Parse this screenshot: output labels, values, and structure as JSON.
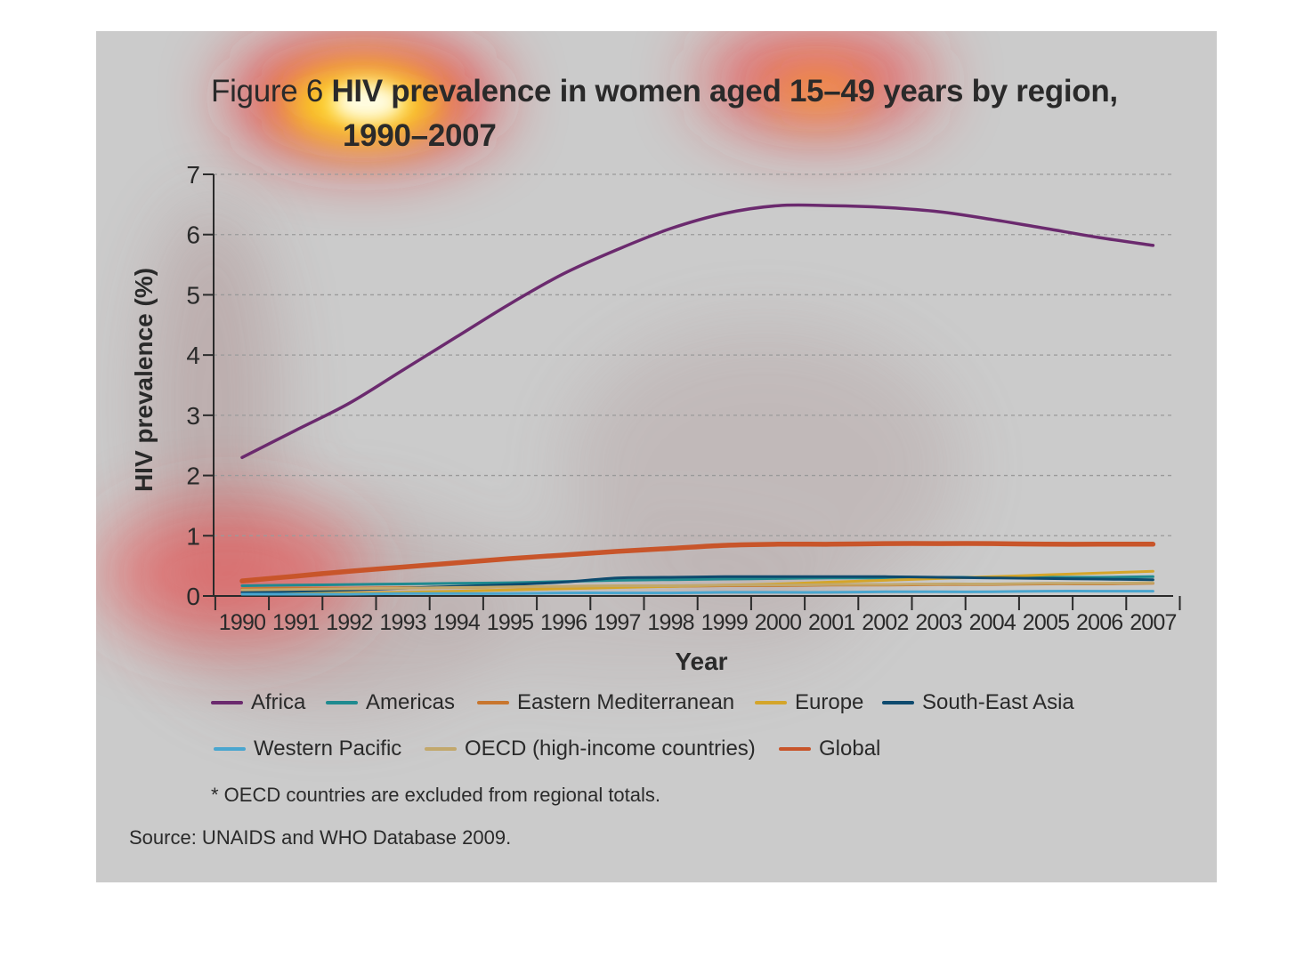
{
  "figure": {
    "title_prefix": "Figure 6",
    "title_bold": "HIV prevalence in women aged 15–49 years by region,",
    "title_line2": "1990–2007",
    "footnote": "* OECD countries are excluded from regional totals.",
    "source": "Source: UNAIDS and WHO Database 2009.",
    "background": "#cbcbcb"
  },
  "chart_data": {
    "type": "line",
    "xlabel": "Year",
    "ylabel": "HIV prevalence (%)",
    "ylim": [
      0,
      7
    ],
    "yticks": [
      "0",
      "1",
      "2",
      "3",
      "4",
      "5",
      "6",
      "7"
    ],
    "grid": "horizontal dashed",
    "legend_position": "bottom",
    "x": [
      "1990",
      "1991",
      "1992",
      "1993",
      "1994",
      "1995",
      "1996",
      "1997",
      "1998",
      "1999",
      "2000",
      "2001",
      "2002",
      "2003",
      "2004",
      "2005",
      "2006",
      "2007"
    ],
    "series": [
      {
        "name": "Africa",
        "color": "#6b2a6e",
        "width": 3.5,
        "values": [
          2.3,
          2.75,
          3.2,
          3.75,
          4.3,
          4.85,
          5.35,
          5.75,
          6.1,
          6.35,
          6.48,
          6.48,
          6.45,
          6.38,
          6.25,
          6.1,
          5.95,
          5.82
        ]
      },
      {
        "name": "Americas",
        "color": "#1f8a8f",
        "width": 3,
        "values": [
          0.17,
          0.18,
          0.19,
          0.2,
          0.21,
          0.22,
          0.24,
          0.26,
          0.27,
          0.28,
          0.29,
          0.3,
          0.3,
          0.31,
          0.31,
          0.31,
          0.31,
          0.32
        ]
      },
      {
        "name": "Eastern Mediterranean",
        "color": "#c8762e",
        "width": 3,
        "values": [
          0.12,
          0.13,
          0.13,
          0.14,
          0.14,
          0.15,
          0.15,
          0.16,
          0.16,
          0.17,
          0.17,
          0.18,
          0.18,
          0.19,
          0.19,
          0.2,
          0.2,
          0.21
        ]
      },
      {
        "name": "Europe",
        "color": "#d4a52a",
        "width": 3,
        "values": [
          0.03,
          0.04,
          0.05,
          0.06,
          0.08,
          0.1,
          0.12,
          0.14,
          0.16,
          0.18,
          0.2,
          0.23,
          0.26,
          0.29,
          0.32,
          0.35,
          0.38,
          0.41
        ]
      },
      {
        "name": "South-East Asia",
        "color": "#0e4a6e",
        "width": 3,
        "values": [
          0.06,
          0.08,
          0.1,
          0.13,
          0.16,
          0.19,
          0.23,
          0.3,
          0.31,
          0.32,
          0.32,
          0.32,
          0.32,
          0.31,
          0.3,
          0.29,
          0.28,
          0.27
        ]
      },
      {
        "name": "Western Pacific",
        "color": "#4aa6cf",
        "width": 3,
        "values": [
          0.03,
          0.03,
          0.03,
          0.04,
          0.04,
          0.04,
          0.05,
          0.05,
          0.05,
          0.06,
          0.06,
          0.06,
          0.07,
          0.07,
          0.07,
          0.08,
          0.08,
          0.08
        ]
      },
      {
        "name": "OECD (high-income countries)",
        "color": "#c2a86c",
        "width": 3,
        "values": [
          0.1,
          0.11,
          0.12,
          0.13,
          0.14,
          0.15,
          0.16,
          0.17,
          0.17,
          0.18,
          0.18,
          0.19,
          0.19,
          0.2,
          0.2,
          0.21,
          0.21,
          0.22
        ]
      },
      {
        "name": "Global",
        "color": "#c8552a",
        "width": 5.5,
        "values": [
          0.25,
          0.33,
          0.41,
          0.48,
          0.55,
          0.62,
          0.68,
          0.74,
          0.79,
          0.84,
          0.86,
          0.86,
          0.87,
          0.87,
          0.87,
          0.86,
          0.86,
          0.86
        ]
      }
    ]
  }
}
